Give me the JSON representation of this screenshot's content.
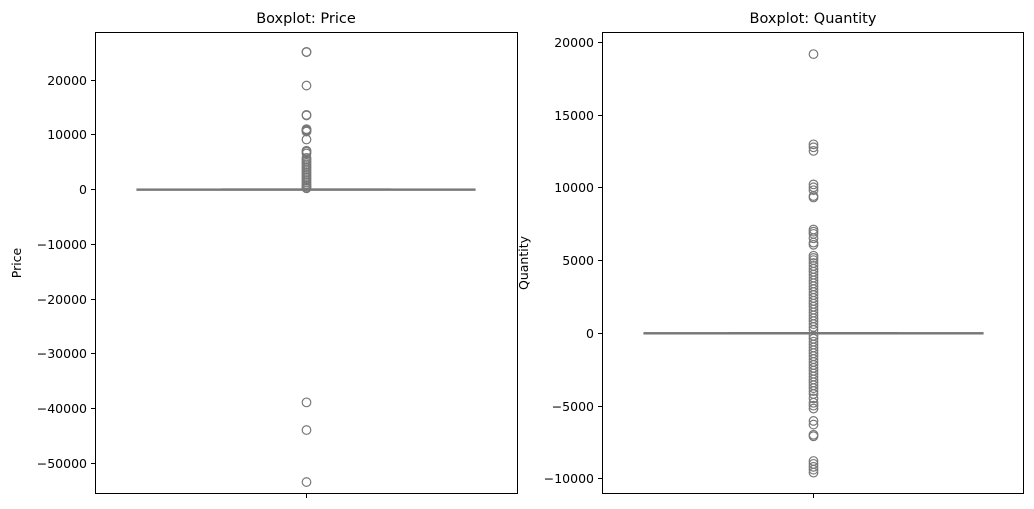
{
  "chart_data": [
    {
      "type": "boxplot",
      "title": "Boxplot: Price",
      "xlabel": "",
      "ylabel": "Price",
      "ylim": [
        -55500,
        28500
      ],
      "yticks": [
        20000,
        10000,
        0,
        -10000,
        -20000,
        -30000,
        -40000,
        -50000
      ],
      "ytick_labels": [
        "20000",
        "10000",
        "0",
        "−10000",
        "−20000",
        "−30000",
        "−40000",
        "−50000"
      ],
      "grid": false,
      "box": {
        "q1": 1,
        "median": 2,
        "q3": 4,
        "whisker_low": -3,
        "whisker_high": 9
      },
      "color": "#787878",
      "outliers": [
        25000,
        25050,
        18900,
        13550,
        13450,
        10950,
        10800,
        10650,
        10500,
        9050,
        7000,
        6800,
        6500,
        5700,
        5400,
        5100,
        4800,
        4500,
        4200,
        3900,
        3600,
        3300,
        3000,
        2700,
        2400,
        2100,
        1800,
        1500,
        1200,
        900,
        600,
        350,
        150,
        -38950,
        -44000,
        -53500
      ]
    },
    {
      "type": "boxplot",
      "title": "Boxplot: Quantity",
      "xlabel": "",
      "ylabel": "Quantity",
      "ylim": [
        -11000,
        20600
      ],
      "yticks": [
        20000,
        15000,
        10000,
        5000,
        0,
        -5000,
        -10000
      ],
      "ytick_labels": [
        "20000",
        "15000",
        "10000",
        "5000",
        "0",
        "−5000",
        "−10000"
      ],
      "grid": false,
      "box": {
        "q1": 1,
        "median": 3,
        "q3": 10,
        "whisker_low": -12,
        "whisker_high": 23
      },
      "color": "#787878",
      "outliers": [
        19150,
        12950,
        12750,
        12500,
        10200,
        10000,
        9800,
        9400,
        9300,
        7100,
        6950,
        6800,
        6500,
        6200,
        6050,
        5300,
        5150,
        5000,
        4800,
        4600,
        4400,
        4200,
        4000,
        3800,
        3600,
        3400,
        3200,
        3000,
        2800,
        2600,
        2400,
        2200,
        2000,
        1800,
        1600,
        1400,
        1200,
        1000,
        800,
        600,
        400,
        200,
        -200,
        -400,
        -600,
        -800,
        -1000,
        -1200,
        -1400,
        -1600,
        -1800,
        -2000,
        -2200,
        -2400,
        -2600,
        -2800,
        -3000,
        -3200,
        -3400,
        -3600,
        -3800,
        -4000,
        -4200,
        -4500,
        -4800,
        -5000,
        -5200,
        -6050,
        -6300,
        -7000,
        -7100,
        -8800,
        -9000,
        -9200,
        -9400,
        -9600
      ]
    }
  ]
}
